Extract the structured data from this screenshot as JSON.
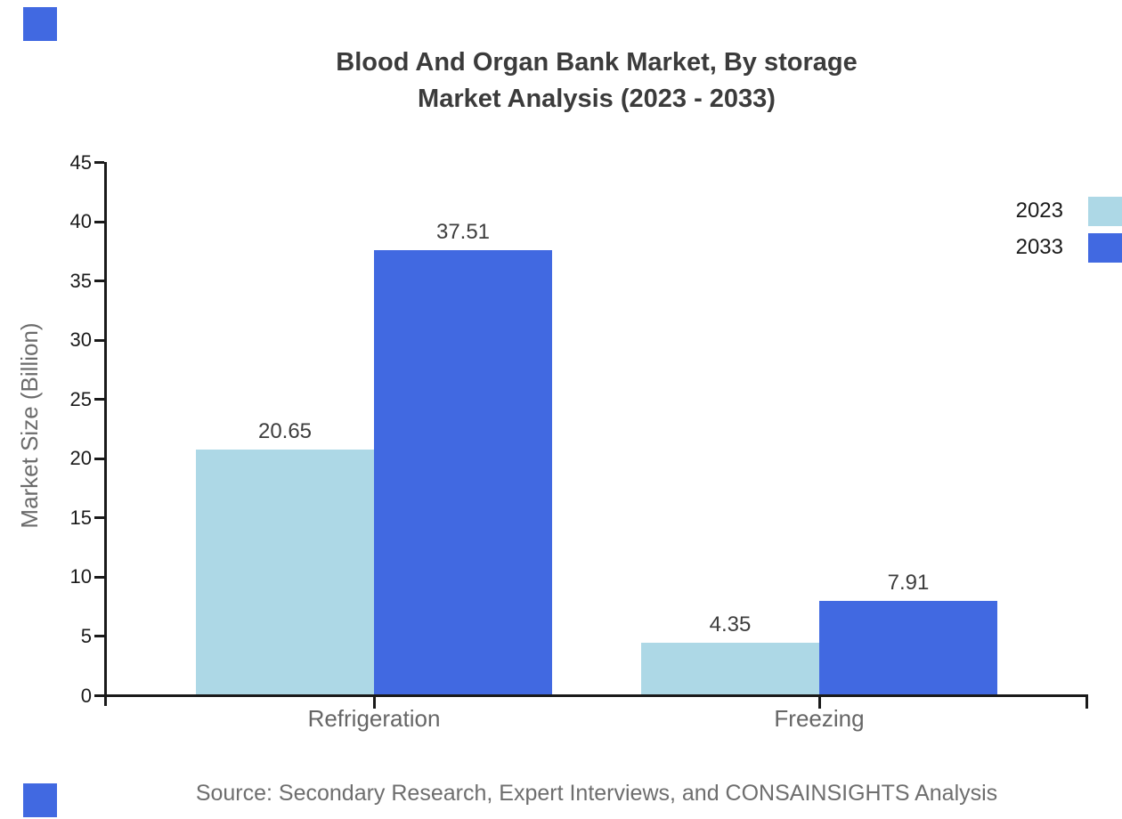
{
  "title": {
    "line1": "Blood And Organ Bank Market, By storage",
    "line2": "Market Analysis (2023 - 2033)"
  },
  "source": "Source: Secondary Research, Expert Interviews, and CONSAINSIGHTS Analysis",
  "colors": {
    "series_2023": "#ADD8E6",
    "series_2033": "#4169E1",
    "brand_square": "#4169E1",
    "axis": "#1a1a1a",
    "tick_label": "#1a1a1a",
    "category_label": "#666666",
    "value_label": "#3d3d3d",
    "muted_text": "#6b6b6b"
  },
  "chart_data": {
    "type": "bar",
    "title": "Blood And Organ Bank Market, By storage Market Analysis (2023 - 2033)",
    "categories": [
      "Refrigeration",
      "Freezing"
    ],
    "series": [
      {
        "name": "2023",
        "color": "#ADD8E6",
        "values": [
          20.65,
          4.35
        ]
      },
      {
        "name": "2033",
        "color": "#4169E1",
        "values": [
          37.51,
          7.91
        ]
      }
    ],
    "xlabel": "",
    "ylabel": "Market Size (Billion)",
    "ylim": [
      0,
      45
    ],
    "yticks": [
      0,
      5,
      10,
      15,
      20,
      25,
      30,
      35,
      40,
      45
    ],
    "grid": false,
    "value_labels": true,
    "legend_position": "right-edge"
  }
}
